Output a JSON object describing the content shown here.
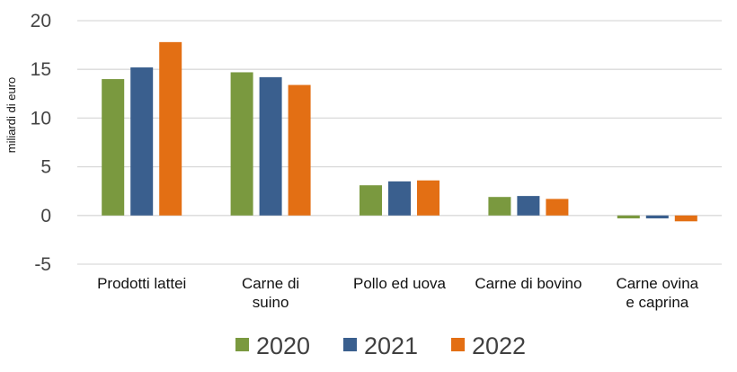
{
  "chart_data": {
    "type": "bar",
    "title": "",
    "xlabel": "",
    "ylabel": "miliardi di euro",
    "ylim": [
      -5,
      20
    ],
    "yticks": [
      -5,
      0,
      5,
      10,
      15,
      20
    ],
    "grid": true,
    "legend_position": "bottom",
    "categories": [
      [
        "Prodotti lattei"
      ],
      [
        "Carne di",
        "suino"
      ],
      [
        "Pollo ed uova"
      ],
      [
        "Carne di bovino"
      ],
      [
        "Carne ovina",
        "e caprina"
      ]
    ],
    "series": [
      {
        "name": "2020",
        "color": "#7a993f",
        "values": [
          14.0,
          14.7,
          3.1,
          1.9,
          -0.3
        ]
      },
      {
        "name": "2021",
        "color": "#3a5f8e",
        "values": [
          15.2,
          14.2,
          3.5,
          2.0,
          -0.3
        ]
      },
      {
        "name": "2022",
        "color": "#e36f14",
        "values": [
          17.8,
          13.4,
          3.6,
          1.7,
          -0.6
        ]
      }
    ]
  }
}
